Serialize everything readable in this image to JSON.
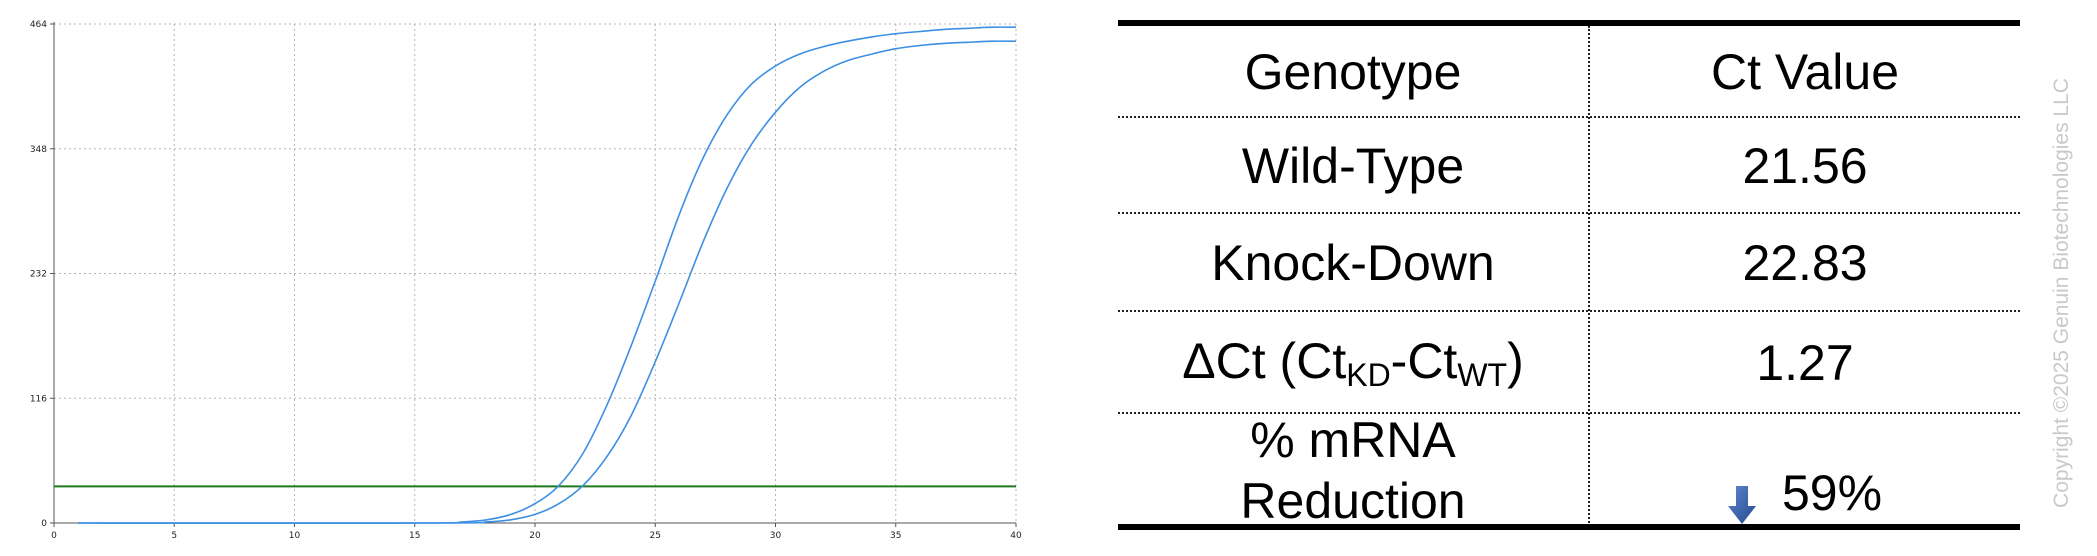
{
  "chart_data": {
    "type": "line",
    "title": "",
    "xlabel": "",
    "ylabel": "",
    "xlim": [
      0,
      40
    ],
    "ylim": [
      0,
      464
    ],
    "x_ticks": [
      0,
      5,
      10,
      15,
      20,
      25,
      30,
      35,
      40
    ],
    "y_ticks": [
      0,
      116,
      232,
      348,
      464
    ],
    "grid": true,
    "threshold": 34,
    "series": [
      {
        "color": "#3d8fe3",
        "x": [
          1,
          15,
          17,
          18,
          19,
          20,
          21,
          22,
          23,
          24,
          25,
          26,
          27,
          28,
          29,
          30,
          31,
          32,
          33,
          34,
          35,
          36,
          37,
          38,
          39,
          40
        ],
        "y": [
          0,
          0,
          1,
          3,
          8,
          18,
          35,
          65,
          110,
          165,
          225,
          287,
          340,
          380,
          408,
          425,
          436,
          443,
          448,
          452,
          455,
          457,
          459,
          460,
          461,
          461
        ]
      },
      {
        "color": "#3d8fe3",
        "x": [
          1,
          16,
          18,
          19,
          20,
          21,
          22,
          23,
          24,
          25,
          26,
          27,
          28,
          29,
          30,
          31,
          32,
          33,
          34,
          35,
          36,
          37,
          38,
          39,
          40
        ],
        "y": [
          0,
          0,
          1,
          3,
          8,
          18,
          35,
          62,
          100,
          150,
          205,
          262,
          312,
          352,
          382,
          405,
          420,
          430,
          436,
          441,
          444,
          446,
          447,
          448,
          448
        ]
      }
    ]
  },
  "table": {
    "headers": [
      "Genotype",
      "Ct Value"
    ],
    "rows": {
      "wildtype": {
        "label": "Wild-Type",
        "value": "21.56"
      },
      "knockdown": {
        "label": "Knock-Down",
        "value": "22.83"
      },
      "delta": {
        "label_prefix": "ΔCt (Ct",
        "sub_kd": "KD",
        "label_mid": "-Ct",
        "sub_wt": "WT",
        "label_suffix": ")",
        "value": "1.27"
      },
      "reduction": {
        "label_line1": "% mRNA",
        "label_line2": "Reduction",
        "value": "59%"
      }
    }
  },
  "icons": {
    "reduction_icon": "down-arrow-icon"
  },
  "colors": {
    "curve": "#3d8fe3",
    "threshold": "#1f7a1f",
    "arrow": "#2e5aa8",
    "watermark": "#c9c9c9"
  },
  "copyright": "Copyright ©2025 Genuin Biotechnologies LLC"
}
